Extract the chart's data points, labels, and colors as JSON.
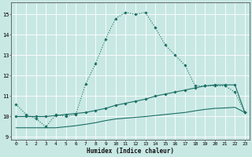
{
  "background_color": "#c8e8e4",
  "grid_color": "#ffffff",
  "line_color": "#1a6e64",
  "xlabel": "Humidex (Indice chaleur)",
  "xlim": [
    -0.5,
    23.5
  ],
  "ylim": [
    8.85,
    15.6
  ],
  "yticks": [
    9,
    10,
    11,
    12,
    13,
    14,
    15
  ],
  "xticks": [
    0,
    1,
    2,
    3,
    4,
    5,
    6,
    7,
    8,
    9,
    10,
    11,
    12,
    13,
    14,
    15,
    16,
    17,
    18,
    19,
    20,
    21,
    22,
    23
  ],
  "curve1_x": [
    0,
    1,
    2,
    3,
    4,
    5,
    6,
    7,
    8,
    9,
    10,
    11,
    12,
    13,
    14,
    15,
    16,
    17,
    18,
    19,
    20,
    21,
    22,
    23
  ],
  "curve1_y": [
    10.6,
    10.1,
    9.9,
    9.5,
    10.1,
    10.0,
    10.1,
    11.6,
    12.6,
    13.8,
    14.8,
    15.1,
    15.0,
    15.1,
    14.35,
    13.5,
    13.0,
    12.5,
    11.5,
    11.5,
    11.5,
    11.5,
    11.2,
    10.2
  ],
  "curve2_x": [
    0,
    1,
    2,
    3,
    4,
    5,
    6,
    7,
    8,
    9,
    10,
    11,
    12,
    13,
    14,
    15,
    16,
    17,
    18,
    19,
    20,
    21,
    22,
    23
  ],
  "curve2_y": [
    10.0,
    10.0,
    10.0,
    10.0,
    10.05,
    10.1,
    10.15,
    10.2,
    10.3,
    10.4,
    10.55,
    10.65,
    10.75,
    10.85,
    11.0,
    11.1,
    11.2,
    11.3,
    11.4,
    11.5,
    11.55,
    11.55,
    11.55,
    10.2
  ],
  "curve3_x": [
    0,
    1,
    2,
    3,
    4,
    5,
    6,
    7,
    8,
    9,
    10,
    11,
    12,
    13,
    14,
    15,
    16,
    17,
    18,
    19,
    20,
    21,
    22,
    23
  ],
  "curve3_y": [
    9.45,
    9.45,
    9.45,
    9.45,
    9.45,
    9.5,
    9.55,
    9.62,
    9.7,
    9.8,
    9.88,
    9.92,
    9.96,
    10.0,
    10.05,
    10.1,
    10.15,
    10.2,
    10.28,
    10.35,
    10.4,
    10.42,
    10.45,
    10.2
  ]
}
